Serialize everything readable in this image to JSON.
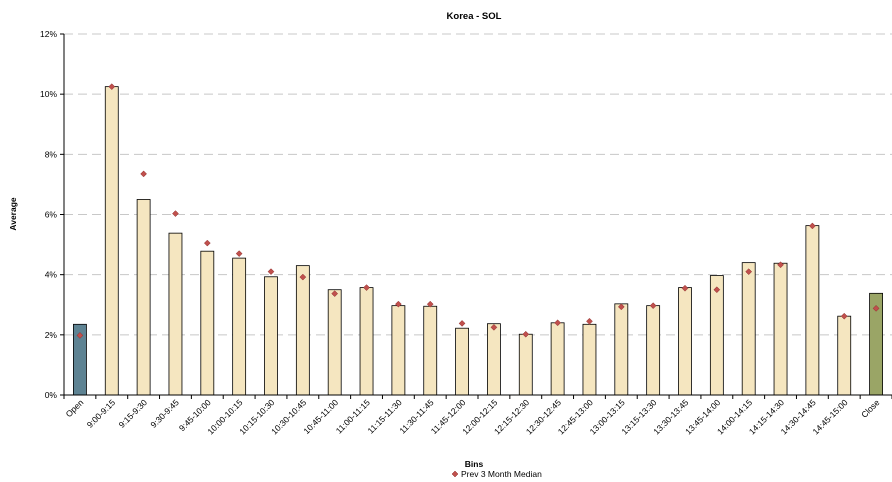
{
  "chart_data": {
    "type": "bar",
    "title": "Korea - SOL",
    "xlabel": "Bins",
    "ylabel": "Average",
    "ylim": [
      0,
      12
    ],
    "y_ticks": [
      "0%",
      "2%",
      "4%",
      "6%",
      "8%",
      "10%",
      "12%"
    ],
    "grid": "horizontal dashed",
    "legend_position": "bottom",
    "categories": [
      "Open",
      "9:00-9:15",
      "9:15-9:30",
      "9:30-9:45",
      "9:45-10:00",
      "10:00-10:15",
      "10:15-10:30",
      "10:30-10:45",
      "10:45-11:00",
      "11:00-11:15",
      "11:15-11:30",
      "11:30-11:45",
      "11:45-12:00",
      "12:00-12:15",
      "12:15-12:30",
      "12:30-12:45",
      "12:45-13:00",
      "13:00-13:15",
      "13:15-13:30",
      "13:30-13:45",
      "13:45-14:00",
      "14:00-14:15",
      "14:15-14:30",
      "14:30-14:45",
      "14:45-15:00",
      "Close"
    ],
    "series": [
      {
        "kind": "bar",
        "values": [
          2.35,
          10.25,
          6.5,
          5.38,
          4.78,
          4.55,
          3.93,
          4.3,
          3.5,
          3.57,
          2.97,
          2.95,
          2.22,
          2.37,
          2.02,
          2.4,
          2.35,
          3.03,
          2.97,
          3.57,
          3.97,
          4.4,
          4.38,
          5.63,
          2.62,
          3.38
        ],
        "colors": [
          "#5e8393",
          "#f5e6c0",
          "#f5e6c0",
          "#f5e6c0",
          "#f5e6c0",
          "#f5e6c0",
          "#f5e6c0",
          "#f5e6c0",
          "#f5e6c0",
          "#f5e6c0",
          "#f5e6c0",
          "#f5e6c0",
          "#f5e6c0",
          "#f5e6c0",
          "#f5e6c0",
          "#f5e6c0",
          "#f5e6c0",
          "#f5e6c0",
          "#f5e6c0",
          "#f5e6c0",
          "#f5e6c0",
          "#f5e6c0",
          "#f5e6c0",
          "#f5e6c0",
          "#f5e6c0",
          "#9aa566"
        ]
      },
      {
        "kind": "scatter",
        "name": "Prev 3 Month Median",
        "marker": "diamond",
        "color": "#c0504d",
        "values": [
          1.98,
          10.25,
          7.35,
          6.03,
          5.05,
          4.7,
          4.1,
          3.92,
          3.37,
          3.57,
          3.02,
          3.02,
          2.38,
          2.25,
          2.02,
          2.4,
          2.45,
          2.93,
          2.97,
          3.55,
          3.5,
          4.1,
          4.33,
          5.62,
          2.62,
          2.88
        ]
      }
    ]
  },
  "colors": {
    "axis": "#000000",
    "grid": "#c8c8c8",
    "bar_border": "#000000"
  }
}
